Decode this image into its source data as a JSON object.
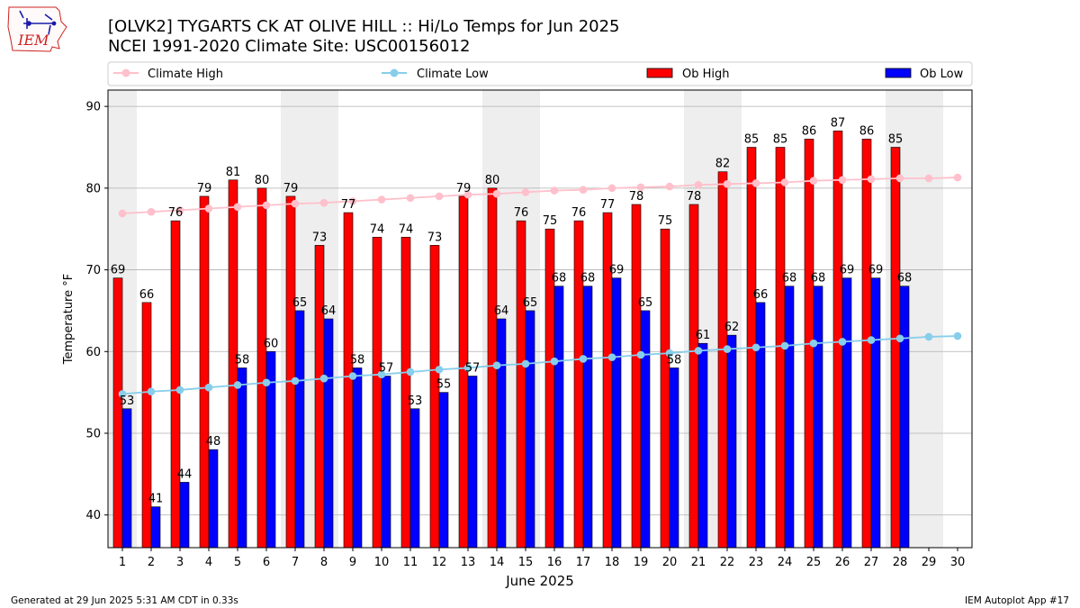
{
  "logo_text": "IEM",
  "colors": {
    "ob_high": "#ff0000",
    "ob_low": "#0000ff",
    "climate_high": "#ffc0cb",
    "climate_low": "#87ceeb",
    "weekend_shade": "#eeeeee",
    "grid": "#b0b0b0",
    "logo_red": "#cc2222",
    "logo_blue": "#1a1aaa"
  },
  "footer": {
    "left": "Generated at 29 Jun 2025 5:31 AM CDT in 0.33s",
    "right": "IEM Autoplot App #17"
  },
  "chart_data": {
    "type": "bar",
    "title": "[OLVK2] TYGARTS CK AT OLIVE HILL :: Hi/Lo Temps for Jun 2025",
    "subtitle": "NCEI 1991-2020 Climate Site: USC00156012",
    "xlabel": "June 2025",
    "ylabel": "Temperature °F",
    "ylim": [
      36,
      92
    ],
    "yticks": [
      40,
      50,
      60,
      70,
      80,
      90
    ],
    "grid": true,
    "legend_position": "top",
    "legend": [
      {
        "name": "Climate High",
        "kind": "line"
      },
      {
        "name": "Climate Low",
        "kind": "line"
      },
      {
        "name": "Ob High",
        "kind": "bar"
      },
      {
        "name": "Ob Low",
        "kind": "bar"
      }
    ],
    "days": [
      1,
      2,
      3,
      4,
      5,
      6,
      7,
      8,
      9,
      10,
      11,
      12,
      13,
      14,
      15,
      16,
      17,
      18,
      19,
      20,
      21,
      22,
      23,
      24,
      25,
      26,
      27,
      28,
      29,
      30
    ],
    "weekend_days": [
      1,
      7,
      8,
      14,
      15,
      21,
      22,
      28,
      29
    ],
    "series": [
      {
        "name": "Ob High",
        "values": [
          69,
          66,
          76,
          79,
          81,
          80,
          79,
          73,
          77,
          74,
          74,
          73,
          79,
          80,
          76,
          75,
          76,
          77,
          78,
          75,
          78,
          82,
          85,
          85,
          86,
          87,
          86,
          85,
          null,
          null
        ]
      },
      {
        "name": "Ob Low",
        "values": [
          53,
          41,
          44,
          48,
          58,
          60,
          65,
          64,
          58,
          57,
          53,
          55,
          57,
          64,
          65,
          68,
          68,
          69,
          65,
          58,
          61,
          62,
          66,
          68,
          68,
          69,
          69,
          68,
          null,
          null
        ]
      },
      {
        "name": "Climate High",
        "values": [
          76.9,
          77.1,
          77.3,
          77.5,
          77.7,
          77.9,
          78.1,
          78.2,
          78.4,
          78.6,
          78.8,
          79.0,
          79.2,
          79.3,
          79.5,
          79.7,
          79.8,
          80.0,
          80.1,
          80.2,
          80.4,
          80.5,
          80.6,
          80.7,
          80.9,
          81.0,
          81.1,
          81.2,
          81.2,
          81.3
        ]
      },
      {
        "name": "Climate Low",
        "values": [
          54.8,
          55.1,
          55.3,
          55.6,
          55.9,
          56.2,
          56.4,
          56.7,
          57.0,
          57.2,
          57.5,
          57.8,
          58.0,
          58.3,
          58.5,
          58.8,
          59.1,
          59.3,
          59.6,
          59.8,
          60.1,
          60.3,
          60.5,
          60.7,
          61.0,
          61.2,
          61.4,
          61.6,
          61.8,
          61.9
        ]
      }
    ]
  }
}
